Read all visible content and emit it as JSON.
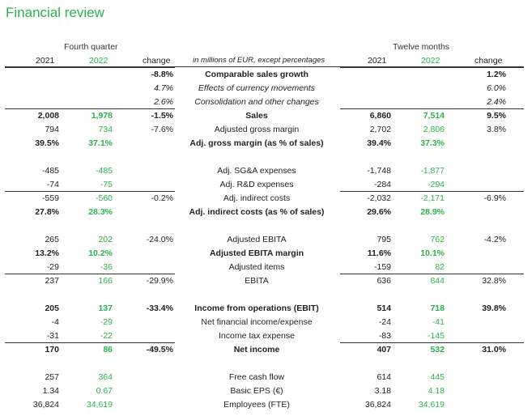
{
  "title": "Financial review",
  "headers": {
    "fourth_quarter": "Fourth quarter",
    "twelve_months": "Twelve months",
    "y2021": "2021",
    "y2022": "2022",
    "change": "change",
    "unit_note": "in millions of EUR, except percentages"
  },
  "rows": [
    {
      "label": "Comparable sales growth",
      "q21": "",
      "q22": "",
      "qchg": "-8.8%",
      "y21": "",
      "y22": "",
      "ychg": "1.2%",
      "bold": true,
      "italic": false,
      "top_line": true
    },
    {
      "label": "Effects of currency movements",
      "q21": "",
      "q22": "",
      "qchg": "4.7%",
      "y21": "",
      "y22": "",
      "ychg": "6.0%",
      "bold": false,
      "italic": true,
      "top_line": false
    },
    {
      "label": "Consolidation and other changes",
      "q21": "",
      "q22": "",
      "qchg": "2.6%",
      "y21": "",
      "y22": "",
      "ychg": "2.4%",
      "bold": false,
      "italic": true,
      "top_line": false
    },
    {
      "label": "Sales",
      "q21": "2,008",
      "q22": "1,978",
      "qchg": "-1.5%",
      "y21": "6,860",
      "y22": "7,514",
      "ychg": "9.5%",
      "bold": true,
      "italic": false,
      "top_line": true
    },
    {
      "label": "Adjusted gross margin",
      "q21": "794",
      "q22": "734",
      "qchg": "-7.6%",
      "y21": "2,702",
      "y22": "2,806",
      "ychg": "3.8%",
      "bold": false,
      "italic": false,
      "top_line": false
    },
    {
      "label": "Adj. gross margin (as % of sales)",
      "q21": "39.5%",
      "q22": "37.1%",
      "qchg": "",
      "y21": "39.4%",
      "y22": "37.3%",
      "ychg": "",
      "bold": true,
      "italic": false,
      "top_line": false
    },
    {
      "label": "Adj. SG&A expenses",
      "q21": "-485",
      "q22": "-485",
      "qchg": "",
      "y21": "-1,748",
      "y22": "-1,877",
      "ychg": "",
      "bold": false,
      "italic": false,
      "top_line": false
    },
    {
      "label": "Adj. R&D expenses",
      "q21": "-74",
      "q22": "-75",
      "qchg": "",
      "y21": "-284",
      "y22": "-294",
      "ychg": "",
      "bold": false,
      "italic": false,
      "top_line": false
    },
    {
      "label": "Adj. indirect costs",
      "q21": "-559",
      "q22": "-560",
      "qchg": "-0.2%",
      "y21": "-2,032",
      "y22": "-2,171",
      "ychg": "-6.9%",
      "bold": false,
      "italic": false,
      "top_line": true
    },
    {
      "label": "Adj. indirect costs (as % of sales)",
      "q21": "27.8%",
      "q22": "28.3%",
      "qchg": "",
      "y21": "29.6%",
      "y22": "28.9%",
      "ychg": "",
      "bold": true,
      "italic": false,
      "top_line": false
    },
    {
      "label": "Adjusted EBITA",
      "q21": "265",
      "q22": "202",
      "qchg": "-24.0%",
      "y21": "795",
      "y22": "762",
      "ychg": "-4.2%",
      "bold": false,
      "italic": false,
      "top_line": false
    },
    {
      "label": "Adjusted EBITA margin",
      "q21": "13.2%",
      "q22": "10.2%",
      "qchg": "",
      "y21": "11.6%",
      "y22": "10.1%",
      "ychg": "",
      "bold": true,
      "italic": false,
      "top_line": false
    },
    {
      "label": "Adjusted items",
      "q21": "-29",
      "q22": "-36",
      "qchg": "",
      "y21": "-159",
      "y22": "82",
      "ychg": "",
      "bold": false,
      "italic": false,
      "top_line": false
    },
    {
      "label": "EBITA",
      "q21": "237",
      "q22": "166",
      "qchg": "-29.9%",
      "y21": "636",
      "y22": "844",
      "ychg": "32.8%",
      "bold": false,
      "italic": false,
      "top_line": true
    },
    {
      "label": "Income from operations (EBIT)",
      "q21": "205",
      "q22": "137",
      "qchg": "-33.4%",
      "y21": "514",
      "y22": "718",
      "ychg": "39.8%",
      "bold": true,
      "italic": false,
      "top_line": false
    },
    {
      "label": "Net financial income/expense",
      "q21": "-4",
      "q22": "-29",
      "qchg": "",
      "y21": "-24",
      "y22": "-41",
      "ychg": "",
      "bold": false,
      "italic": false,
      "top_line": false
    },
    {
      "label": "Income tax expense",
      "q21": "-31",
      "q22": "-22",
      "qchg": "",
      "y21": "-83",
      "y22": "-145",
      "ychg": "",
      "bold": false,
      "italic": false,
      "top_line": false
    },
    {
      "label": "Net income",
      "q21": "170",
      "q22": "86",
      "qchg": "-49.5%",
      "y21": "407",
      "y22": "532",
      "ychg": "31.0%",
      "bold": true,
      "italic": false,
      "top_line": true
    },
    {
      "label": "Free cash flow",
      "q21": "257",
      "q22": "364",
      "qchg": "",
      "y21": "614",
      "y22": "445",
      "ychg": "",
      "bold": false,
      "italic": false,
      "top_line": false
    },
    {
      "label": "Basic EPS (€)",
      "q21": "1.34",
      "q22": "0.67",
      "qchg": "",
      "y21": "3.18",
      "y22": "4.18",
      "ychg": "",
      "bold": false,
      "italic": false,
      "top_line": false
    },
    {
      "label": "Employees (FTE)",
      "q21": "36,824",
      "q22": "34,619",
      "qchg": "",
      "y21": "36,824",
      "y22": "34,619",
      "ychg": "",
      "bold": false,
      "italic": false,
      "top_line": false
    }
  ],
  "colors": {
    "accent": "#2bb34a",
    "text": "#222222",
    "rule": "#333333"
  }
}
